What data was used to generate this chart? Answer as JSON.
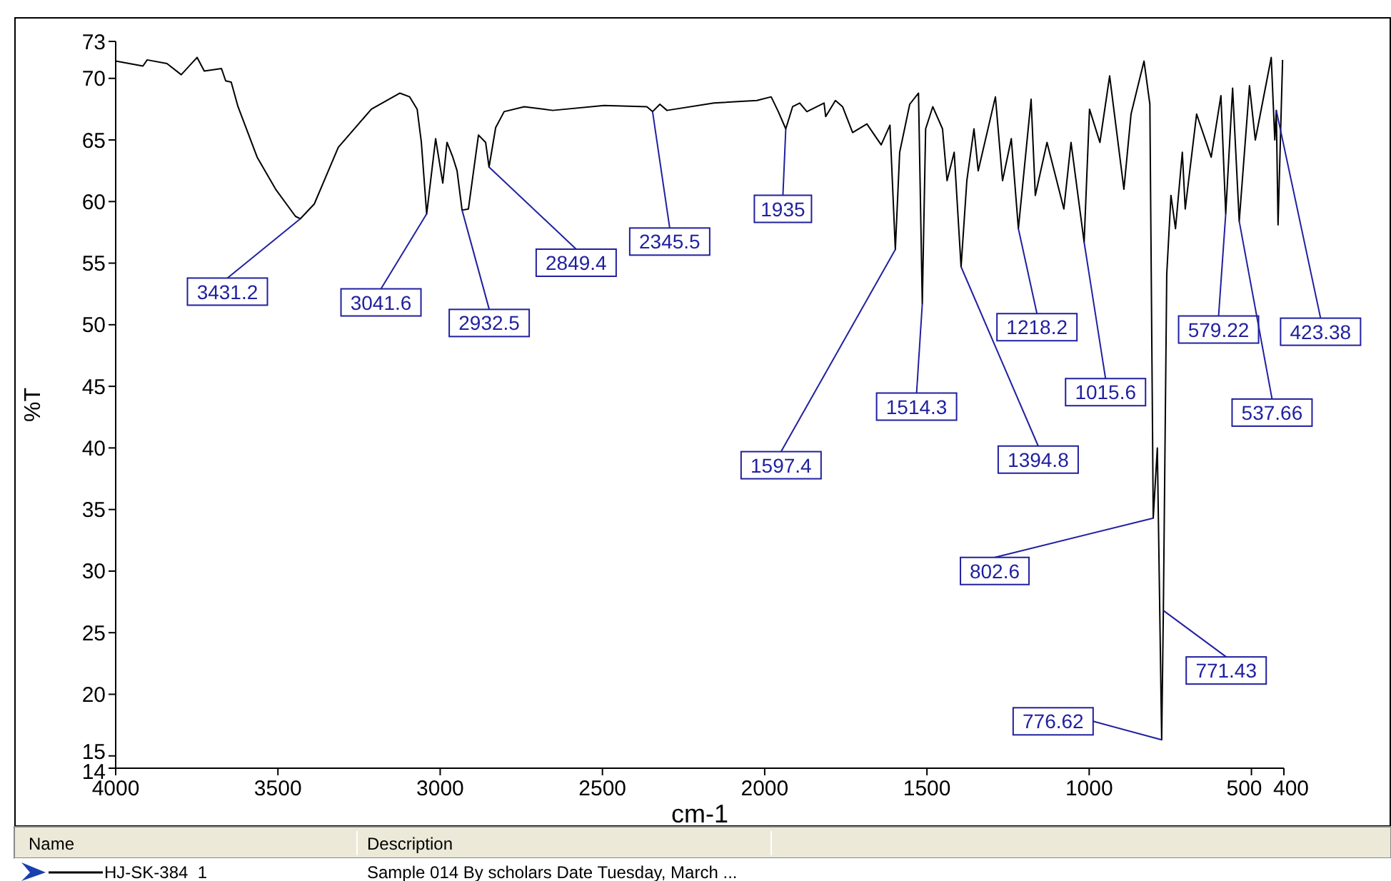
{
  "chart_data": {
    "type": "line",
    "xlabel": "cm-1",
    "ylabel": "%T",
    "legend": "bottom",
    "legend_title": "Name",
    "xlim": [
      4000,
      400
    ],
    "xticks": [
      4000,
      3500,
      3000,
      2500,
      2000,
      1500,
      1000,
      500,
      400
    ],
    "ylim": [
      14,
      73
    ],
    "yticks": [
      14,
      15,
      20,
      25,
      30,
      35,
      40,
      45,
      50,
      55,
      60,
      65,
      70,
      73
    ],
    "series": [
      {
        "name": "HJ-SK-384  1",
        "color": "#000000",
        "x": [
          4000,
          3916,
          3903,
          3842,
          3798,
          3749,
          3727,
          3674,
          3661,
          3644,
          3623,
          3564,
          3507,
          3446,
          3431.2,
          3388,
          3314,
          3212,
          3124,
          3094,
          3071,
          3058,
          3041.6,
          3014,
          2992,
          2979,
          2961,
          2948,
          2932.5,
          2913,
          2882,
          2860,
          2849.4,
          2829,
          2803,
          2741,
          2653,
          2495,
          2363,
          2345.5,
          2323,
          2301,
          2156,
          2024,
          1980,
          1958,
          1935,
          1914,
          1892,
          1870,
          1817,
          1812,
          1782,
          1760,
          1729,
          1685,
          1641,
          1614,
          1597.4,
          1584,
          1553,
          1526,
          1514.3,
          1504,
          1482,
          1452,
          1438,
          1416,
          1394.8,
          1377,
          1355,
          1342,
          1289,
          1267,
          1240,
          1218.2,
          1179,
          1166,
          1130,
          1078,
          1056,
          1015.6,
          999,
          967,
          937,
          893,
          871,
          831,
          813,
          802.6,
          790,
          776.62,
          771.43,
          761,
          748,
          734,
          713,
          704,
          669,
          624,
          594,
          579.22,
          558,
          537.66,
          506,
          488,
          439,
          428,
          423.38,
          418,
          404
        ],
        "values": [
          71.4,
          71.0,
          71.5,
          71.2,
          70.3,
          71.7,
          70.6,
          70.8,
          69.8,
          69.7,
          67.7,
          63.6,
          61.0,
          58.8,
          58.6,
          59.8,
          64.4,
          67.5,
          68.8,
          68.5,
          67.5,
          64.8,
          59.0,
          65.1,
          61.5,
          64.8,
          63.6,
          62.5,
          59.3,
          59.4,
          65.4,
          64.8,
          62.8,
          66.0,
          67.3,
          67.7,
          67.4,
          67.8,
          67.7,
          67.3,
          67.9,
          67.4,
          68.0,
          68.2,
          68.5,
          67.3,
          65.9,
          67.7,
          68.0,
          67.3,
          68.0,
          66.9,
          68.2,
          67.7,
          65.6,
          66.3,
          64.6,
          66.2,
          56.1,
          64.0,
          67.9,
          68.8,
          51.7,
          65.9,
          67.7,
          65.9,
          61.7,
          64.0,
          54.7,
          61.7,
          65.9,
          62.5,
          68.5,
          61.7,
          65.1,
          57.8,
          68.3,
          60.5,
          64.8,
          59.4,
          64.8,
          56.7,
          67.5,
          64.8,
          70.2,
          61.0,
          67.1,
          71.4,
          67.9,
          34.3,
          40.0,
          16.3,
          26.8,
          54.1,
          60.5,
          57.8,
          64.0,
          59.4,
          67.1,
          63.6,
          68.6,
          59.0,
          69.2,
          58.4,
          69.4,
          65.0,
          71.7,
          65.0,
          67.4,
          58.1,
          71.5
        ]
      }
    ],
    "annotations": [
      {
        "text": "3431.2",
        "x": 3431.2,
        "y": 58.6
      },
      {
        "text": "3041.6",
        "x": 3041.6,
        "y": 59.0
      },
      {
        "text": "2932.5",
        "x": 2932.5,
        "y": 59.3
      },
      {
        "text": "2849.4",
        "x": 2849.4,
        "y": 62.8
      },
      {
        "text": "2345.5",
        "x": 2345.5,
        "y": 67.3
      },
      {
        "text": "1935",
        "x": 1935,
        "y": 65.9
      },
      {
        "text": "1597.4",
        "x": 1597.4,
        "y": 56.1
      },
      {
        "text": "1514.3",
        "x": 1514.3,
        "y": 51.7
      },
      {
        "text": "1394.8",
        "x": 1394.8,
        "y": 54.7
      },
      {
        "text": "1218.2",
        "x": 1218.2,
        "y": 57.8
      },
      {
        "text": "1015.6",
        "x": 1015.6,
        "y": 56.7
      },
      {
        "text": "802.6",
        "x": 802.6,
        "y": 34.3
      },
      {
        "text": "776.62",
        "x": 776.62,
        "y": 16.3
      },
      {
        "text": "771.43",
        "x": 771.43,
        "y": 26.8
      },
      {
        "text": "579.22",
        "x": 579.22,
        "y": 59.0
      },
      {
        "text": "537.66",
        "x": 537.66,
        "y": 58.4
      },
      {
        "text": "423.38",
        "x": 423.38,
        "y": 67.4
      },
      "Description",
      "Sample 014 By scholars Date Tuesday, March ..."
    ]
  }
}
